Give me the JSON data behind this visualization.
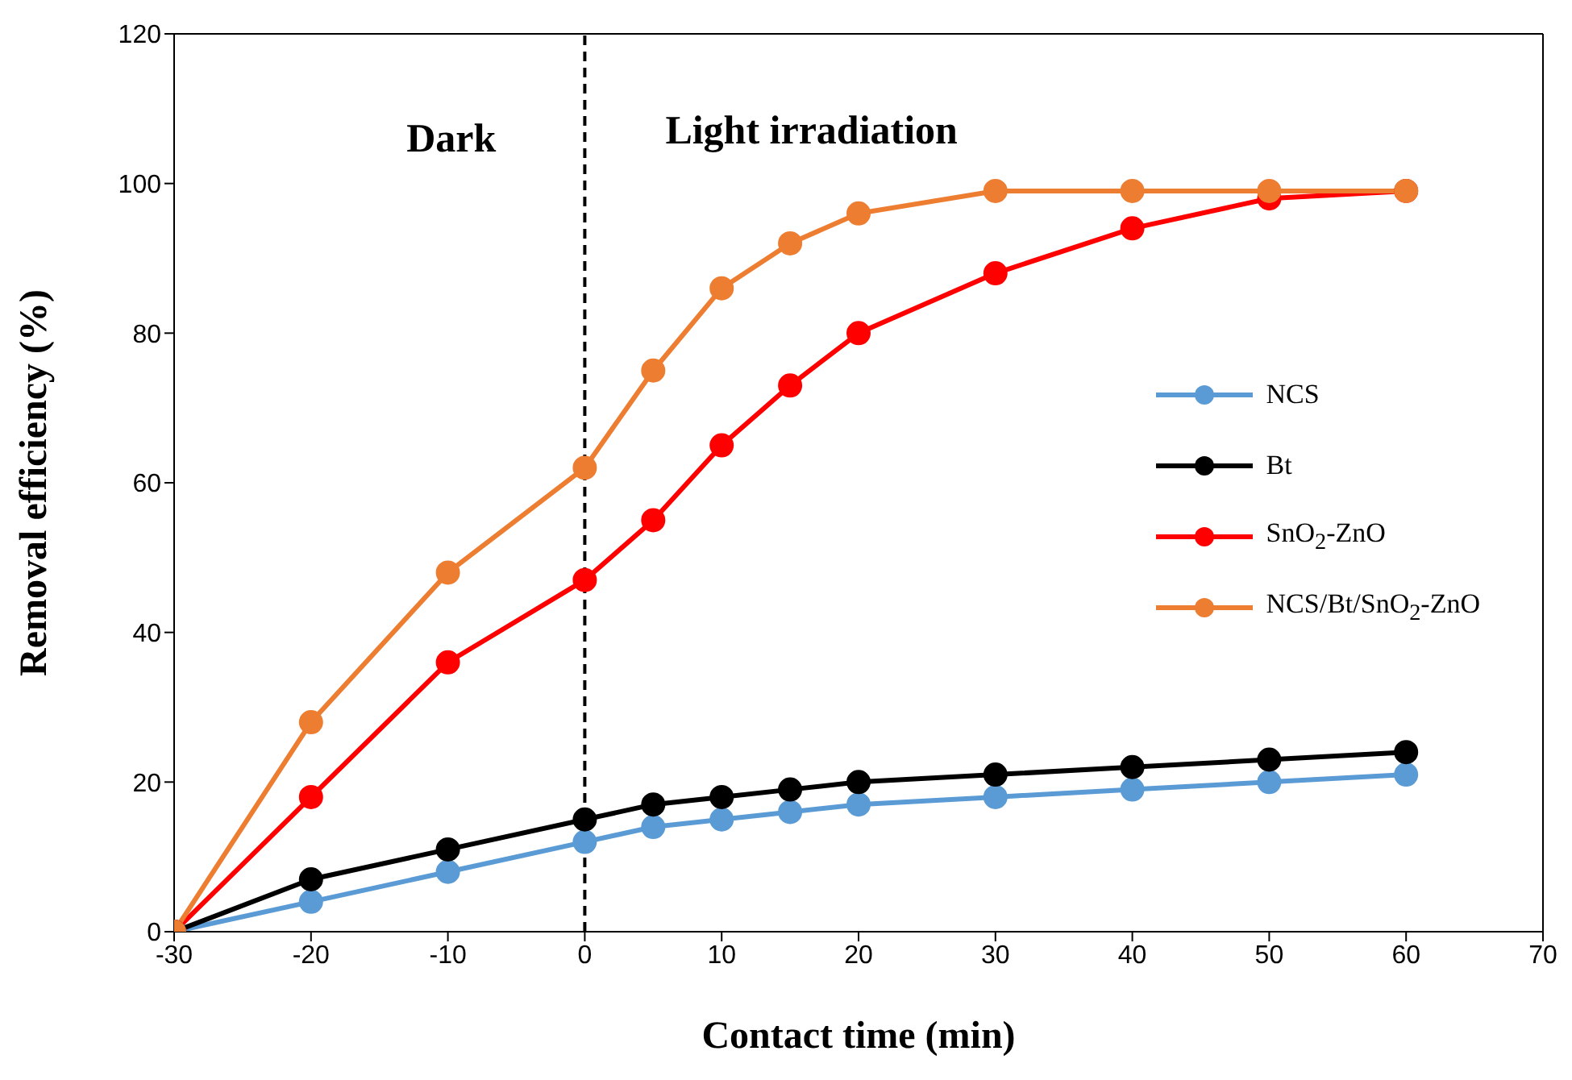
{
  "chart_data": {
    "type": "line",
    "xlabel": "Contact time (min)",
    "ylabel": "Removal efficiency (%)",
    "x": [
      -30,
      -20,
      -10,
      0,
      5,
      10,
      15,
      20,
      30,
      40,
      50,
      60
    ],
    "series": [
      {
        "name": "NCS",
        "color": "#5b9bd5",
        "values": [
          0,
          4,
          8,
          12,
          14,
          15,
          16,
          17,
          18,
          19,
          20,
          21
        ]
      },
      {
        "name": "Bt",
        "color": "#000000",
        "values": [
          0,
          7,
          11,
          15,
          17,
          18,
          19,
          20,
          21,
          22,
          23,
          24
        ]
      },
      {
        "name": "SnO$_{2}$-ZnO",
        "color": "#ff0000",
        "values": [
          0,
          18,
          36,
          47,
          55,
          65,
          73,
          80,
          88,
          94,
          98,
          99
        ]
      },
      {
        "name": "NCS/Bt/SnO$_{2}$-ZnO",
        "color": "#ed7d31",
        "values": [
          0,
          28,
          48,
          62,
          75,
          86,
          92,
          96,
          99,
          99,
          99,
          99
        ]
      }
    ],
    "xlim": [
      -30,
      70
    ],
    "xticks": [
      -30,
      -20,
      -10,
      0,
      10,
      20,
      30,
      40,
      50,
      60,
      70
    ],
    "ylim": [
      0,
      120
    ],
    "yticks": [
      0,
      20,
      40,
      60,
      80,
      100,
      120
    ],
    "ref_lines": [
      {
        "axis": "x",
        "value": 0,
        "color": "#000000",
        "line_style": "dashed"
      }
    ],
    "annotations": [
      "Dark",
      "Light irradiation"
    ],
    "grid": false,
    "legend": "right",
    "marker": "circle",
    "line_style": "solid"
  }
}
